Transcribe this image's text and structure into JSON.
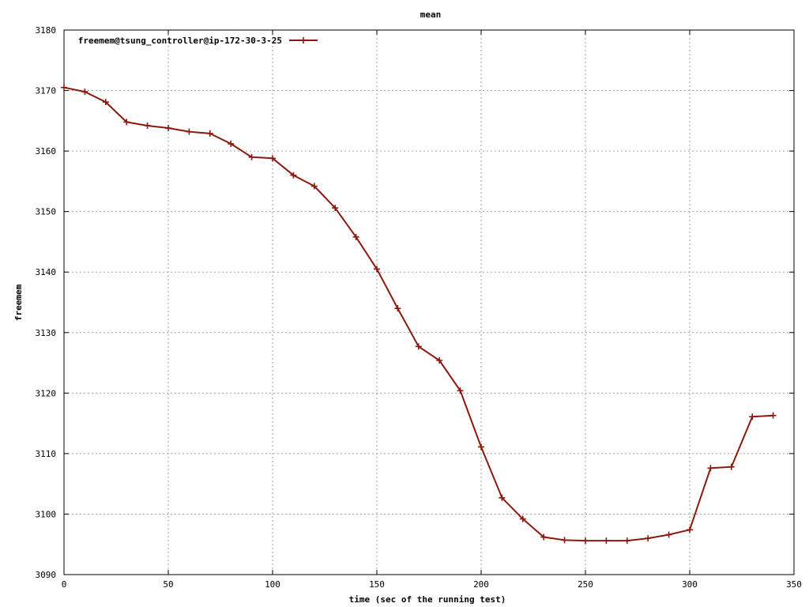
{
  "chart_data": {
    "type": "line",
    "title": "mean",
    "xlabel": "time (sec of the running test)",
    "ylabel": "freemem",
    "xlim": [
      0,
      350
    ],
    "ylim": [
      3090,
      3180
    ],
    "xticks": [
      0,
      50,
      100,
      150,
      200,
      250,
      300,
      350
    ],
    "yticks": [
      3090,
      3100,
      3110,
      3120,
      3130,
      3140,
      3150,
      3160,
      3170,
      3180
    ],
    "grid": true,
    "legend_position": "top-left",
    "series": [
      {
        "name": "freemem@tsung_controller@ip-172-30-3-25",
        "color": "#8b1a0e",
        "marker": "plus",
        "x": [
          0,
          10,
          20,
          30,
          40,
          50,
          60,
          70,
          80,
          90,
          100,
          110,
          120,
          130,
          140,
          150,
          160,
          170,
          180,
          190,
          200,
          210,
          220,
          230,
          240,
          250,
          260,
          270,
          280,
          290,
          300,
          310,
          320,
          330,
          340
        ],
        "y": [
          3170.5,
          3169.8,
          3168.1,
          3164.8,
          3164.2,
          3163.8,
          3163.2,
          3162.9,
          3161.2,
          3159.0,
          3158.8,
          3156.0,
          3154.2,
          3150.6,
          3145.8,
          3140.5,
          3134.0,
          3127.7,
          3125.4,
          3120.4,
          3111.1,
          3102.7,
          3099.2,
          3096.2,
          3095.7,
          3095.6,
          3095.6,
          3095.6,
          3096.0,
          3096.6,
          3097.4,
          3107.6,
          3107.8,
          3116.1,
          3116.3
        ]
      }
    ]
  }
}
